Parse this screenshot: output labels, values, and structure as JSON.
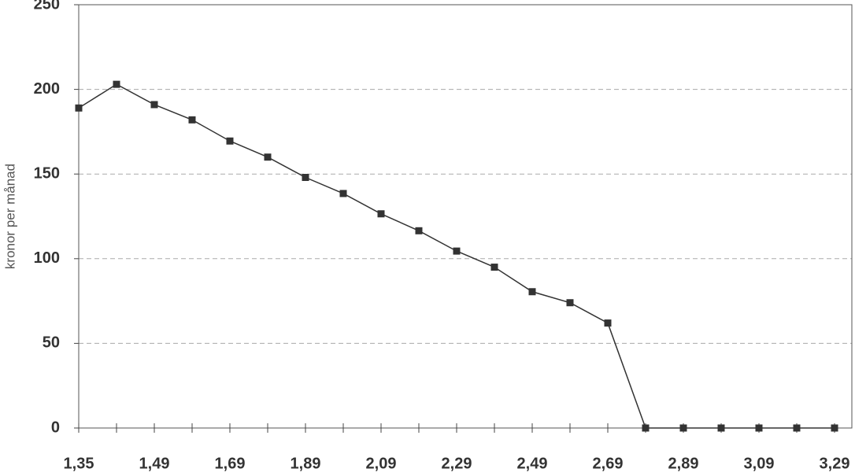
{
  "chart_data": {
    "type": "line",
    "y_label": "kronor per månad",
    "categories": [
      "1,35",
      null,
      "1,49",
      null,
      "1,69",
      null,
      "1,89",
      null,
      "2,09",
      null,
      "2,29",
      null,
      "2,49",
      null,
      "2,69",
      null,
      "2,89",
      null,
      "3,09",
      null,
      "3,29"
    ],
    "values": [
      189,
      203,
      191,
      182,
      169.5,
      160,
      148,
      138.5,
      126.5,
      116.5,
      104.5,
      95,
      80.5,
      74,
      62,
      0,
      0,
      0,
      0,
      0,
      0
    ],
    "color": "#333333",
    "ylim": [
      0,
      250
    ],
    "yticks": [
      0,
      50,
      100,
      150,
      200,
      250
    ],
    "grid": true
  }
}
